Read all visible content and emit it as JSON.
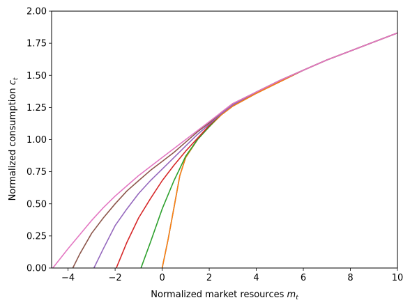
{
  "chart_data": {
    "type": "line",
    "title": "",
    "xlabel": "Normalized market resources",
    "xlabel_symbol": "m",
    "xlabel_subscript": "t",
    "ylabel": "Normalized consumption",
    "ylabel_symbol": "c",
    "ylabel_subscript": "t",
    "xlim": [
      -4.7,
      10
    ],
    "ylim": [
      0,
      2.0
    ],
    "xticks": [
      -4,
      -2,
      0,
      2,
      4,
      6,
      8,
      10
    ],
    "xtick_labels": [
      "−4",
      "−2",
      "0",
      "2",
      "4",
      "6",
      "8",
      "10"
    ],
    "yticks": [
      0,
      0.25,
      0.5,
      0.75,
      1.0,
      1.25,
      1.5,
      1.75,
      2.0
    ],
    "ytick_labels": [
      "0.00",
      "0.25",
      "0.50",
      "0.75",
      "1.00",
      "1.25",
      "1.50",
      "1.75",
      "2.00"
    ],
    "grid": false,
    "legend": "none",
    "series": [
      {
        "color": "#1f77b4",
        "x": [
          0.0,
          0.25,
          0.5,
          0.75,
          1.0,
          1.5,
          2.0,
          2.5,
          3.0,
          4.0,
          5.0,
          6.0,
          7.0,
          8.0,
          9.0,
          10.0
        ],
        "y": [
          0.0,
          0.22,
          0.47,
          0.72,
          0.86,
          1.0,
          1.1,
          1.19,
          1.26,
          1.36,
          1.45,
          1.54,
          1.62,
          1.69,
          1.76,
          1.83
        ]
      },
      {
        "color": "#ff7f0e",
        "x": [
          0.0,
          0.25,
          0.5,
          0.75,
          1.0,
          1.5,
          2.0,
          2.5,
          3.0,
          4.0,
          5.0,
          6.0,
          7.0,
          8.0,
          9.0,
          10.0
        ],
        "y": [
          0.0,
          0.22,
          0.47,
          0.72,
          0.86,
          1.0,
          1.1,
          1.19,
          1.26,
          1.36,
          1.45,
          1.54,
          1.62,
          1.69,
          1.76,
          1.83
        ]
      },
      {
        "color": "#2ca02c",
        "x": [
          -0.9,
          -0.5,
          0.0,
          0.5,
          1.0,
          1.5,
          2.0,
          2.5,
          3.0,
          4.0,
          5.0,
          6.0,
          7.0,
          8.0,
          9.0,
          10.0
        ],
        "y": [
          0.0,
          0.2,
          0.46,
          0.68,
          0.87,
          1.0,
          1.1,
          1.2,
          1.27,
          1.37,
          1.46,
          1.54,
          1.62,
          1.69,
          1.76,
          1.83
        ]
      },
      {
        "color": "#d62728",
        "x": [
          -1.95,
          -1.5,
          -1.0,
          -0.5,
          0.0,
          0.5,
          1.0,
          1.5,
          2.0,
          2.5,
          3.0,
          4.0,
          5.0,
          6.0,
          7.0,
          8.0,
          9.0,
          10.0
        ],
        "y": [
          0.0,
          0.2,
          0.39,
          0.54,
          0.68,
          0.8,
          0.91,
          1.01,
          1.11,
          1.2,
          1.27,
          1.37,
          1.46,
          1.54,
          1.62,
          1.69,
          1.76,
          1.83
        ]
      },
      {
        "color": "#9467bd",
        "x": [
          -2.9,
          -2.5,
          -2.0,
          -1.5,
          -1.0,
          -0.5,
          0.0,
          0.5,
          1.0,
          1.5,
          2.0,
          2.5,
          3.0,
          4.0,
          5.0,
          6.0,
          7.0,
          8.0,
          9.0,
          10.0
        ],
        "y": [
          0.0,
          0.15,
          0.33,
          0.46,
          0.58,
          0.68,
          0.77,
          0.86,
          0.95,
          1.04,
          1.12,
          1.2,
          1.27,
          1.37,
          1.46,
          1.54,
          1.62,
          1.69,
          1.76,
          1.83
        ]
      },
      {
        "color": "#8c564b",
        "x": [
          -3.8,
          -3.5,
          -3.0,
          -2.5,
          -2.0,
          -1.5,
          -1.0,
          -0.5,
          0.0,
          0.5,
          1.0,
          1.5,
          2.0,
          2.5,
          3.0,
          4.0,
          5.0,
          6.0,
          7.0,
          8.0,
          9.0,
          10.0
        ],
        "y": [
          0.0,
          0.11,
          0.27,
          0.39,
          0.5,
          0.6,
          0.68,
          0.76,
          0.83,
          0.9,
          0.98,
          1.06,
          1.13,
          1.21,
          1.28,
          1.37,
          1.46,
          1.54,
          1.62,
          1.69,
          1.76,
          1.83
        ]
      },
      {
        "color": "#e377c2",
        "x": [
          -4.65,
          -4.0,
          -3.5,
          -3.0,
          -2.5,
          -2.0,
          -1.5,
          -1.0,
          -0.5,
          0.0,
          0.5,
          1.0,
          1.5,
          2.0,
          2.5,
          3.0,
          4.0,
          5.0,
          6.0,
          7.0,
          8.0,
          9.0,
          10.0
        ],
        "y": [
          0.0,
          0.15,
          0.26,
          0.37,
          0.47,
          0.56,
          0.64,
          0.72,
          0.79,
          0.86,
          0.93,
          1.0,
          1.07,
          1.14,
          1.21,
          1.28,
          1.37,
          1.46,
          1.54,
          1.62,
          1.69,
          1.76,
          1.83
        ]
      }
    ]
  }
}
